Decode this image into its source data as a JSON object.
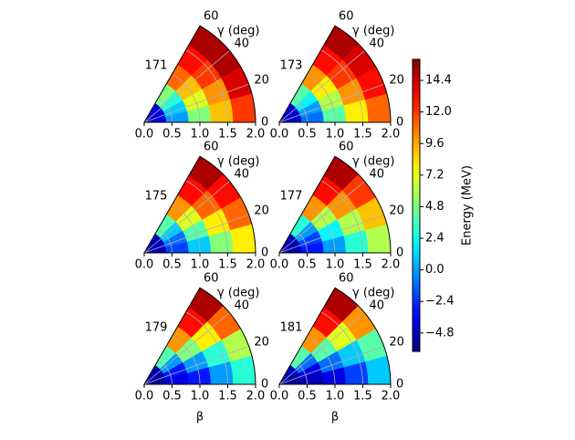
{
  "chart_data": {
    "type": "polar_contour",
    "x_label": "β",
    "y_label": "γ (deg)",
    "beta_edges": [
      0,
      0.4,
      0.8,
      1.2,
      1.6,
      2.0
    ],
    "gamma_edges": [
      0,
      15,
      30,
      45,
      60
    ],
    "xlim": [
      0,
      2.0
    ],
    "xticks": [
      {
        "value": 0,
        "label": "0.0"
      },
      0.5,
      {
        "value": 1,
        "label": "1.0"
      },
      1.5,
      {
        "value": 2,
        "label": "2.0"
      }
    ],
    "ylim": [
      0,
      60
    ],
    "yticks": [
      0,
      20,
      40,
      60
    ],
    "grid": true,
    "colormap": "jet",
    "colorbar": {
      "label": "Energy (MeV)",
      "clim": [
        -6.2,
        16.0
      ],
      "ticks": [
        {
          "value": -4.8,
          "label": "−4.8"
        },
        {
          "value": -2.4,
          "label": "−2.4"
        },
        {
          "value": 0,
          "label": "0.0"
        },
        2.4,
        4.8,
        7.2,
        9.6,
        {
          "value": 12,
          "label": "12.0"
        },
        14.4
      ]
    },
    "panels": [
      {
        "title": "171",
        "values": [
          [
            -4,
            -4,
            -4,
            -4
          ],
          [
            0,
            1,
            3,
            5
          ],
          [
            5,
            7,
            9,
            11
          ],
          [
            9,
            10,
            12,
            13
          ],
          [
            12,
            14,
            15,
            15
          ]
        ]
      },
      {
        "title": "173",
        "values": [
          [
            -4.5,
            -4.5,
            -4.5,
            -4.5
          ],
          [
            -1,
            0,
            2,
            4
          ],
          [
            4,
            6,
            8,
            10
          ],
          [
            8,
            10,
            12,
            13
          ],
          [
            11,
            13,
            14,
            15
          ]
        ]
      },
      {
        "title": "175",
        "values": [
          [
            -5,
            -5,
            -5,
            -5
          ],
          [
            -2,
            -1,
            1,
            4
          ],
          [
            1,
            4,
            7,
            10
          ],
          [
            5,
            8,
            11,
            13
          ],
          [
            8,
            11,
            13,
            15
          ]
        ]
      },
      {
        "title": "177",
        "values": [
          [
            -5,
            -5,
            -5,
            -5
          ],
          [
            -3,
            -2,
            0,
            3
          ],
          [
            0,
            2,
            6,
            10
          ],
          [
            3,
            6,
            10,
            13
          ],
          [
            6,
            9,
            12,
            15
          ]
        ]
      },
      {
        "title": "179",
        "values": [
          [
            -5.5,
            -5.5,
            -5,
            -5
          ],
          [
            -4,
            -3,
            0,
            4
          ],
          [
            -3,
            0,
            5,
            10
          ],
          [
            0,
            3,
            8,
            13
          ],
          [
            3,
            6,
            11,
            15
          ]
        ]
      },
      {
        "title": "181",
        "values": [
          [
            -5.5,
            -5.5,
            -5,
            -5
          ],
          [
            -5,
            -4,
            -1,
            4
          ],
          [
            -4,
            -1,
            4,
            10
          ],
          [
            -2,
            1,
            7,
            13
          ],
          [
            1,
            4,
            10,
            15
          ]
        ]
      }
    ]
  }
}
